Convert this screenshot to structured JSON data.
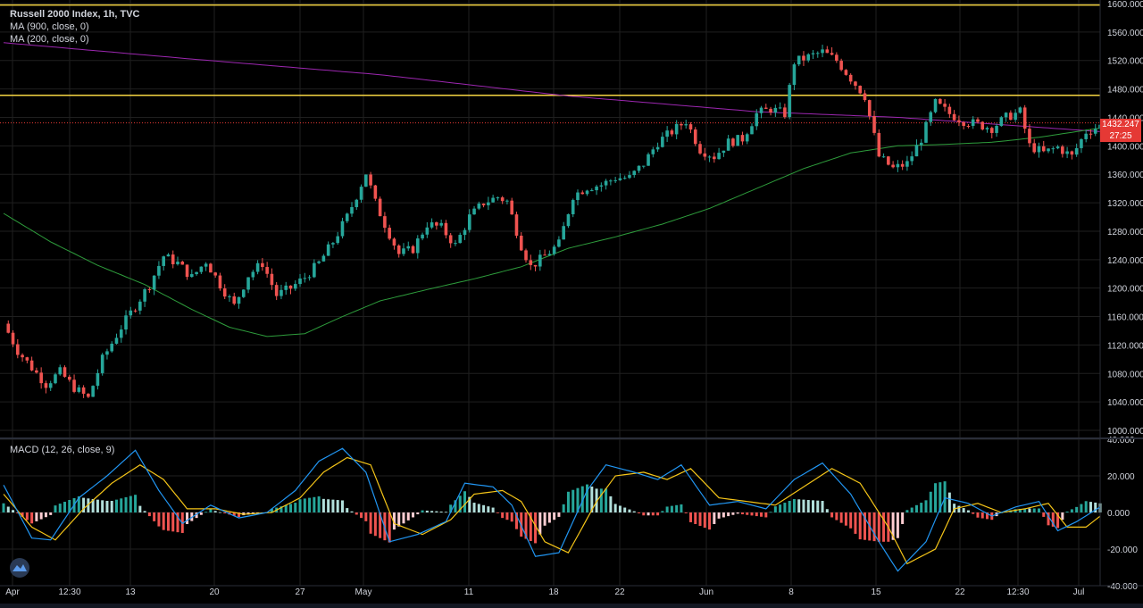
{
  "legend": {
    "title": "Russell 2000 Index, 1h, TVC",
    "ma1": "MA (900, close, 0)",
    "ma2": "MA (200, close, 0)",
    "macd": "MACD (12, 26, close, 9)"
  },
  "price_badge": "1432.247",
  "countdown_badge": "27:25",
  "colors": {
    "background": "#000000",
    "grid": "#1f1f1f",
    "up": "#26a69a",
    "down": "#ef5350",
    "ma900": "#9c27b0",
    "ma200": "#2e9d3c",
    "hline": "#f5d442",
    "macd_line": "#2196f3",
    "signal_line": "#f5c518",
    "hist_up_strong": "#26a69a",
    "hist_up_weak": "#b2dfdb",
    "hist_down_strong": "#ef5350",
    "hist_down_weak": "#ffcdd2",
    "axis_text": "#d1d4dc",
    "badge": "#e53935"
  },
  "chart_data": [
    {
      "type": "candlestick",
      "title": "Russell 2000 Index, 1h, TVC",
      "y_ticks": [
        "1600.000",
        "1560.000",
        "1520.000",
        "1480.000",
        "1440.000",
        "1400.000",
        "1360.000",
        "1320.000",
        "1280.000",
        "1240.000",
        "1200.000",
        "1160.000",
        "1120.000",
        "1080.000",
        "1040.000",
        "1000.000"
      ],
      "ylim": [
        990,
        1605
      ],
      "x_ticks": [
        "Apr",
        "12:30",
        "13",
        "20",
        "27",
        "May",
        "11",
        "18",
        "22",
        "Jun",
        "8",
        "15",
        "22",
        "12:30",
        "Jul"
      ],
      "horizontal_lines": [
        1598,
        1471
      ],
      "last_price": 1432.247,
      "close_path": [
        [
          0,
          1150
        ],
        [
          3,
          1112
        ],
        [
          6,
          1088
        ],
        [
          9,
          1065
        ],
        [
          12,
          1082
        ],
        [
          15,
          1060
        ],
        [
          18,
          1045
        ],
        [
          21,
          1100
        ],
        [
          25,
          1145
        ],
        [
          28,
          1175
        ],
        [
          31,
          1205
        ],
        [
          34,
          1245
        ],
        [
          37,
          1235
        ],
        [
          40,
          1215
        ],
        [
          43,
          1238
        ],
        [
          46,
          1205
        ],
        [
          49,
          1175
        ],
        [
          52,
          1218
        ],
        [
          55,
          1235
        ],
        [
          58,
          1190
        ],
        [
          61,
          1200
        ],
        [
          64,
          1215
        ],
        [
          67,
          1235
        ],
        [
          70,
          1265
        ],
        [
          73,
          1300
        ],
        [
          75,
          1330
        ],
        [
          77,
          1362
        ],
        [
          79,
          1320
        ],
        [
          81,
          1290
        ],
        [
          84,
          1248
        ],
        [
          87,
          1255
        ],
        [
          90,
          1290
        ],
        [
          93,
          1285
        ],
        [
          96,
          1260
        ],
        [
          99,
          1300
        ],
        [
          102,
          1320
        ],
        [
          105,
          1328
        ],
        [
          107,
          1322
        ],
        [
          110,
          1260
        ],
        [
          112,
          1230
        ],
        [
          115,
          1245
        ],
        [
          118,
          1262
        ],
        [
          121,
          1330
        ],
        [
          124,
          1342
        ],
        [
          127,
          1345
        ],
        [
          130,
          1355
        ],
        [
          133,
          1355
        ],
        [
          136,
          1375
        ],
        [
          139,
          1405
        ],
        [
          142,
          1420
        ],
        [
          145,
          1435
        ],
        [
          148,
          1395
        ],
        [
          151,
          1385
        ],
        [
          154,
          1405
        ],
        [
          157,
          1410
        ],
        [
          160,
          1445
        ],
        [
          163,
          1452
        ],
        [
          166,
          1445
        ],
        [
          168,
          1518
        ],
        [
          171,
          1525
        ],
        [
          174,
          1532
        ],
        [
          177,
          1520
        ],
        [
          180,
          1495
        ],
        [
          183,
          1470
        ],
        [
          186,
          1385
        ],
        [
          189,
          1368
        ],
        [
          192,
          1375
        ],
        [
          195,
          1410
        ],
        [
          198,
          1460
        ],
        [
          201,
          1445
        ],
        [
          204,
          1435
        ],
        [
          207,
          1430
        ],
        [
          210,
          1425
        ],
        [
          213,
          1440
        ],
        [
          216,
          1448
        ],
        [
          218,
          1400
        ],
        [
          221,
          1390
        ],
        [
          224,
          1398
        ],
        [
          227,
          1385
        ],
        [
          230,
          1420
        ],
        [
          233,
          1428
        ]
      ]
    },
    {
      "type": "line",
      "name": "MA (900, close, 0)",
      "y": [
        [
          0,
          1545
        ],
        [
          40,
          1522
        ],
        [
          80,
          1500
        ],
        [
          120,
          1470
        ],
        [
          160,
          1448
        ],
        [
          190,
          1440
        ],
        [
          233,
          1420
        ]
      ]
    },
    {
      "type": "line",
      "name": "MA (200, close, 0)",
      "y": [
        [
          0,
          1305
        ],
        [
          10,
          1265
        ],
        [
          20,
          1232
        ],
        [
          30,
          1205
        ],
        [
          40,
          1170
        ],
        [
          48,
          1145
        ],
        [
          56,
          1132
        ],
        [
          64,
          1136
        ],
        [
          72,
          1160
        ],
        [
          80,
          1182
        ],
        [
          90,
          1198
        ],
        [
          100,
          1213
        ],
        [
          110,
          1230
        ],
        [
          120,
          1256
        ],
        [
          130,
          1272
        ],
        [
          140,
          1290
        ],
        [
          150,
          1312
        ],
        [
          160,
          1340
        ],
        [
          170,
          1368
        ],
        [
          180,
          1390
        ],
        [
          190,
          1400
        ],
        [
          200,
          1402
        ],
        [
          210,
          1405
        ],
        [
          220,
          1412
        ],
        [
          233,
          1425
        ]
      ]
    },
    {
      "type": "macd",
      "title": "MACD (12, 26, close, 9)",
      "y_ticks": [
        "40.000",
        "20.000",
        "0.000",
        "-20.000",
        "-40.000"
      ],
      "ylim": [
        -40,
        40
      ],
      "macd": [
        [
          0,
          15
        ],
        [
          6,
          -14
        ],
        [
          10,
          -15
        ],
        [
          16,
          8
        ],
        [
          22,
          20
        ],
        [
          28,
          34
        ],
        [
          33,
          12
        ],
        [
          38,
          -6
        ],
        [
          44,
          4
        ],
        [
          50,
          -3
        ],
        [
          56,
          0
        ],
        [
          62,
          12
        ],
        [
          67,
          28
        ],
        [
          72,
          35
        ],
        [
          77,
          22
        ],
        [
          82,
          -16
        ],
        [
          88,
          -12
        ],
        [
          94,
          -5
        ],
        [
          98,
          16
        ],
        [
          104,
          14
        ],
        [
          108,
          4
        ],
        [
          113,
          -24
        ],
        [
          118,
          -22
        ],
        [
          124,
          12
        ],
        [
          128,
          26
        ],
        [
          134,
          22
        ],
        [
          139,
          18
        ],
        [
          144,
          26
        ],
        [
          150,
          4
        ],
        [
          156,
          6
        ],
        [
          162,
          2
        ],
        [
          168,
          18
        ],
        [
          174,
          27
        ],
        [
          180,
          10
        ],
        [
          186,
          -16
        ],
        [
          190,
          -32
        ],
        [
          196,
          -16
        ],
        [
          200,
          8
        ],
        [
          205,
          5
        ],
        [
          210,
          -2
        ],
        [
          215,
          3
        ],
        [
          220,
          6
        ],
        [
          224,
          -10
        ],
        [
          228,
          -5
        ],
        [
          233,
          3
        ]
      ],
      "signal": [
        [
          0,
          10
        ],
        [
          6,
          -8
        ],
        [
          11,
          -15
        ],
        [
          17,
          2
        ],
        [
          23,
          16
        ],
        [
          29,
          26
        ],
        [
          34,
          18
        ],
        [
          39,
          2
        ],
        [
          45,
          2
        ],
        [
          51,
          -1
        ],
        [
          57,
          0
        ],
        [
          63,
          8
        ],
        [
          68,
          22
        ],
        [
          73,
          30
        ],
        [
          78,
          26
        ],
        [
          83,
          -6
        ],
        [
          89,
          -12
        ],
        [
          95,
          -4
        ],
        [
          100,
          10
        ],
        [
          106,
          12
        ],
        [
          110,
          6
        ],
        [
          115,
          -16
        ],
        [
          120,
          -22
        ],
        [
          126,
          6
        ],
        [
          130,
          20
        ],
        [
          136,
          22
        ],
        [
          141,
          18
        ],
        [
          146,
          24
        ],
        [
          152,
          8
        ],
        [
          158,
          6
        ],
        [
          164,
          4
        ],
        [
          170,
          14
        ],
        [
          176,
          24
        ],
        [
          182,
          16
        ],
        [
          188,
          -8
        ],
        [
          192,
          -28
        ],
        [
          198,
          -20
        ],
        [
          202,
          2
        ],
        [
          207,
          5
        ],
        [
          212,
          0
        ],
        [
          217,
          2
        ],
        [
          222,
          5
        ],
        [
          226,
          -8
        ],
        [
          230,
          -8
        ],
        [
          233,
          -2
        ]
      ]
    }
  ]
}
